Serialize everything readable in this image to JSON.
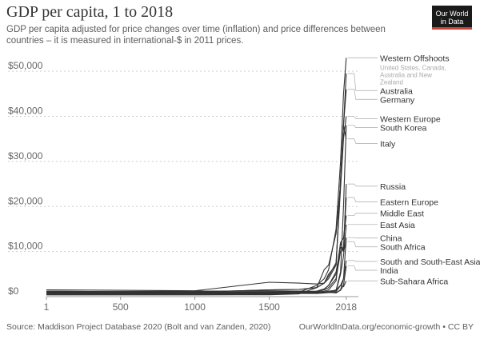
{
  "chart_data": {
    "type": "line",
    "title": "GDP per capita, 1 to 2018",
    "subtitle": "GDP per capita adjusted for price changes over time (inflation) and price differences between countries – it is measured in international-$ in 2011 prices.",
    "xlabel": "",
    "ylabel": "",
    "xlim": [
      1,
      2100
    ],
    "ylim": [
      0,
      55000
    ],
    "x_ticks": [
      1,
      500,
      1000,
      1500,
      2018
    ],
    "x_tick_labels": [
      "1",
      "500",
      "1000",
      "1500",
      "2018"
    ],
    "y_ticks": [
      0,
      10000,
      20000,
      30000,
      40000,
      50000
    ],
    "y_tick_labels": [
      "$0",
      "$10,000",
      "$20,000",
      "$30,000",
      "$40,000",
      "$50,000"
    ],
    "grid": "horizontal dotted",
    "series": [
      {
        "name": "Western Offshoots",
        "note": "United States, Canada, Australia and New Zealand",
        "x": [
          1,
          1000,
          1500,
          1700,
          1820,
          1870,
          1900,
          1950,
          1980,
          2000,
          2018
        ],
        "values": [
          400,
          400,
          500,
          1000,
          2500,
          4000,
          6000,
          15000,
          30000,
          45000,
          53000
        ],
        "label_value": 53000
      },
      {
        "name": "Australia",
        "x": [
          1,
          1000,
          1500,
          1700,
          1820,
          1870,
          1900,
          1950,
          1980,
          2000,
          2018
        ],
        "values": [
          400,
          400,
          400,
          600,
          2000,
          6000,
          7000,
          14000,
          25000,
          38000,
          49500
        ],
        "label_value": 46000
      },
      {
        "name": "Germany",
        "x": [
          1,
          1000,
          1500,
          1700,
          1820,
          1870,
          1900,
          1950,
          1980,
          2000,
          2018
        ],
        "values": [
          1000,
          1000,
          1500,
          1600,
          2000,
          3000,
          5000,
          7000,
          26000,
          38000,
          46000
        ],
        "label_value": 44000
      },
      {
        "name": "Western Europe",
        "x": [
          1,
          1000,
          1500,
          1700,
          1820,
          1870,
          1900,
          1950,
          1980,
          2000,
          2018
        ],
        "values": [
          1200,
          1000,
          1500,
          1600,
          2000,
          3000,
          4500,
          7500,
          24000,
          35000,
          40000
        ],
        "label_value": 39500
      },
      {
        "name": "South Korea",
        "x": [
          1,
          1000,
          1500,
          1700,
          1820,
          1870,
          1900,
          1950,
          1980,
          2000,
          2018
        ],
        "values": [
          1000,
          1000,
          1000,
          1000,
          1000,
          1000,
          1200,
          1400,
          5500,
          20000,
          38000
        ],
        "label_value": 37500
      },
      {
        "name": "Italy",
        "x": [
          1,
          1000,
          1500,
          1700,
          1820,
          1870,
          1900,
          1950,
          1980,
          2000,
          2018
        ],
        "values": [
          1500,
          1300,
          3200,
          3000,
          2800,
          3000,
          4000,
          7000,
          26000,
          38000,
          35000
        ],
        "label_value": 34000
      },
      {
        "name": "Russia",
        "x": [
          1,
          1000,
          1500,
          1700,
          1820,
          1870,
          1900,
          1950,
          1980,
          2000,
          2018
        ],
        "values": [
          1000,
          1000,
          1000,
          1100,
          1200,
          1700,
          2500,
          5000,
          12000,
          10000,
          25000
        ],
        "label_value": 24500
      },
      {
        "name": "Eastern Europe",
        "x": [
          1,
          1000,
          1500,
          1700,
          1820,
          1870,
          1900,
          1950,
          1980,
          2000,
          2018
        ],
        "values": [
          1000,
          1000,
          1000,
          1000,
          1100,
          1500,
          2000,
          4000,
          10000,
          11000,
          22000
        ],
        "label_value": 21000
      },
      {
        "name": "Middle East",
        "x": [
          1,
          1000,
          1500,
          1700,
          1820,
          1870,
          1900,
          1950,
          1980,
          2000,
          2018
        ],
        "values": [
          1200,
          1000,
          1000,
          1000,
          1000,
          1200,
          1500,
          3500,
          12000,
          13000,
          18000
        ],
        "label_value": 18500
      },
      {
        "name": "East Asia",
        "x": [
          1,
          1000,
          1500,
          1700,
          1820,
          1870,
          1900,
          1950,
          1980,
          2000,
          2018
        ],
        "values": [
          1000,
          1200,
          1200,
          1200,
          1100,
          1000,
          1200,
          1300,
          5000,
          9000,
          16000
        ],
        "label_value": 16000
      },
      {
        "name": "China",
        "x": [
          1,
          1000,
          1500,
          1700,
          1820,
          1870,
          1900,
          1950,
          1980,
          2000,
          2018
        ],
        "values": [
          1000,
          1200,
          1300,
          1200,
          1100,
          1000,
          1000,
          800,
          1500,
          4000,
          13100
        ],
        "label_value": 13000
      },
      {
        "name": "South Africa",
        "x": [
          1,
          1000,
          1500,
          1700,
          1820,
          1870,
          1900,
          1950,
          1980,
          2000,
          2018
        ],
        "values": [
          800,
          800,
          800,
          900,
          1200,
          1700,
          2500,
          5500,
          11000,
          10000,
          12200
        ],
        "label_value": 11800
      },
      {
        "name": "South and South-East Asia",
        "x": [
          1,
          1000,
          1500,
          1700,
          1820,
          1870,
          1900,
          1950,
          1980,
          2000,
          2018
        ],
        "values": [
          800,
          800,
          800,
          900,
          900,
          900,
          1000,
          1100,
          2500,
          4000,
          8000
        ],
        "label_value": 7800
      },
      {
        "name": "India",
        "x": [
          1,
          1000,
          1500,
          1700,
          1820,
          1870,
          1900,
          1950,
          1980,
          2000,
          2018
        ],
        "values": [
          800,
          800,
          900,
          900,
          900,
          900,
          900,
          900,
          1400,
          2500,
          6800
        ],
        "label_value": 6000
      },
      {
        "name": "Sub-Sahara Africa",
        "x": [
          1,
          1000,
          1500,
          1700,
          1820,
          1870,
          1900,
          1950,
          1980,
          2000,
          2018
        ],
        "values": [
          600,
          600,
          600,
          700,
          700,
          800,
          900,
          1500,
          2500,
          2200,
          3500
        ],
        "label_value": 3500
      }
    ]
  },
  "logo": {
    "line1": "Our World",
    "line2": "in Data"
  },
  "footer": {
    "source": "Source: Maddison Project Database 2020 (Bolt and van Zanden, 2020)",
    "credit": "OurWorldInData.org/economic-growth • CC BY"
  }
}
